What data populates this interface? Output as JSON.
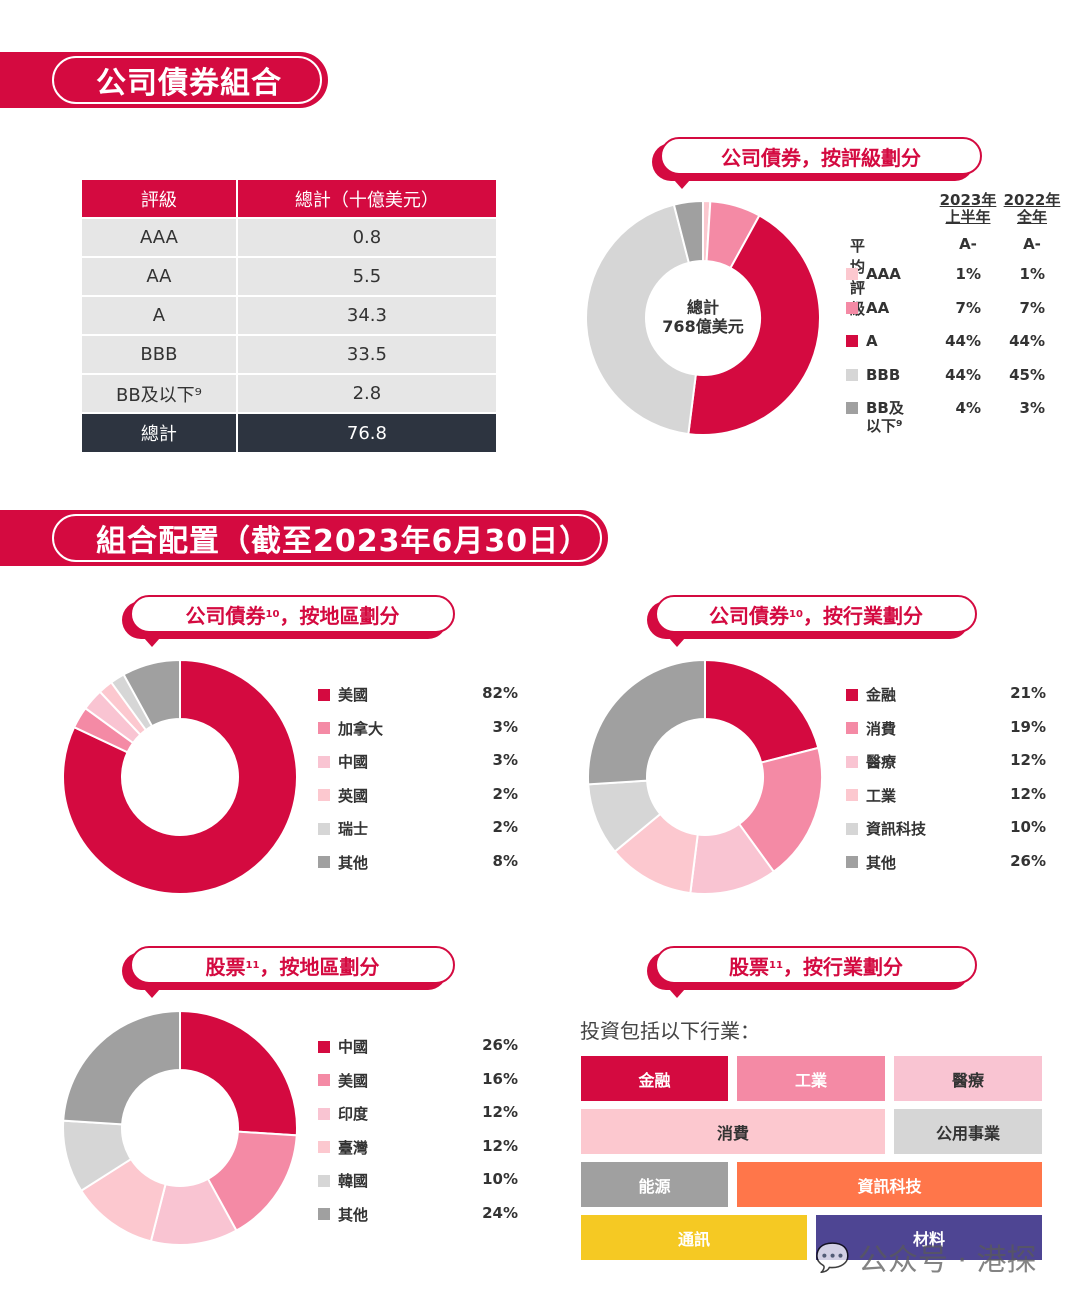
{
  "section1": {
    "title": "公司債券組合"
  },
  "rating_table": {
    "headers": [
      "評級",
      "總計（十億美元）"
    ],
    "rows": [
      [
        "AAA",
        "0.8"
      ],
      [
        "AA",
        "5.5"
      ],
      [
        "A",
        "34.3"
      ],
      [
        "BBB",
        "33.5"
      ],
      [
        "BB及以下⁹",
        "2.8"
      ]
    ],
    "total": [
      "總計",
      "76.8"
    ]
  },
  "section2": {
    "title": "組合配置（截至2023年6月30日）"
  },
  "colors": {
    "crimson": "#D40A40",
    "pink": "#F48AA5",
    "lightpink": "#F9C4D2",
    "palepink": "#FCC8CF",
    "lightgray": "#D6D6D6",
    "gray": "#A0A0A0",
    "orange": "#FF764A",
    "yellow": "#F5C923",
    "purple": "#4E4593"
  },
  "chart_data": [
    {
      "type": "pie",
      "id": "rating",
      "title": "公司債券，按評級劃分",
      "center_label": [
        "總計",
        "768億美元"
      ],
      "col_headers": [
        [
          "2023年",
          "上半年"
        ],
        [
          "2022年",
          "全年"
        ]
      ],
      "avg_label": "平均評級",
      "avg": [
        "A-",
        "A-"
      ],
      "categories": [
        "AAA",
        "AA",
        "A",
        "BBB",
        "BB及以下⁹"
      ],
      "series": [
        {
          "name": "2023年上半年",
          "values": [
            1,
            7,
            44,
            44,
            4
          ],
          "labels": [
            "1%",
            "7%",
            "44%",
            "44%",
            "4%"
          ]
        },
        {
          "name": "2022年全年",
          "values": [
            1,
            7,
            44,
            45,
            3
          ],
          "labels": [
            "1%",
            "7%",
            "44%",
            "45%",
            "3%"
          ]
        }
      ],
      "colors": [
        "#FCC8CF",
        "#F48AA5",
        "#D40A40",
        "#D6D6D6",
        "#A0A0A0"
      ]
    },
    {
      "type": "pie",
      "id": "bond_region",
      "title": "公司債券",
      "title_sup": "10",
      "title_suffix": "，按地區劃分",
      "categories": [
        "美國",
        "加拿大",
        "中國",
        "英國",
        "瑞士",
        "其他"
      ],
      "values": [
        82,
        3,
        3,
        2,
        2,
        8
      ],
      "labels": [
        "82%",
        "3%",
        "3%",
        "2%",
        "2%",
        "8%"
      ],
      "colors": [
        "#D40A40",
        "#F48AA5",
        "#F9C4D2",
        "#FCC8CF",
        "#D6D6D6",
        "#A0A0A0"
      ]
    },
    {
      "type": "pie",
      "id": "bond_industry",
      "title": "公司債券",
      "title_sup": "10",
      "title_suffix": "，按行業劃分",
      "categories": [
        "金融",
        "消費",
        "醫療",
        "工業",
        "資訊科技",
        "其他"
      ],
      "values": [
        21,
        19,
        12,
        12,
        10,
        26
      ],
      "labels": [
        "21%",
        "19%",
        "12%",
        "12%",
        "10%",
        "26%"
      ],
      "colors": [
        "#D40A40",
        "#F48AA5",
        "#F9C4D2",
        "#FCC8CF",
        "#D6D6D6",
        "#A0A0A0"
      ]
    },
    {
      "type": "pie",
      "id": "equity_region",
      "title": "股票",
      "title_sup": "11",
      "title_suffix": "，按地區劃分",
      "categories": [
        "中國",
        "美國",
        "印度",
        "臺灣",
        "韓國",
        "其他"
      ],
      "values": [
        26,
        16,
        12,
        12,
        10,
        24
      ],
      "labels": [
        "26%",
        "16%",
        "12%",
        "12%",
        "10%",
        "24%"
      ],
      "colors": [
        "#D40A40",
        "#F48AA5",
        "#F9C4D2",
        "#FCC8CF",
        "#D6D6D6",
        "#A0A0A0"
      ]
    }
  ],
  "equity_industry": {
    "title": "股票",
    "title_sup": "11",
    "title_suffix": "，按行業劃分",
    "intro": "投資包括以下行業：",
    "tiles": [
      "金融",
      "工業",
      "醫療",
      "消費",
      "公用事業",
      "能源",
      "資訊科技",
      "通訊",
      "材料"
    ]
  },
  "watermark": "公众号 · 港探"
}
